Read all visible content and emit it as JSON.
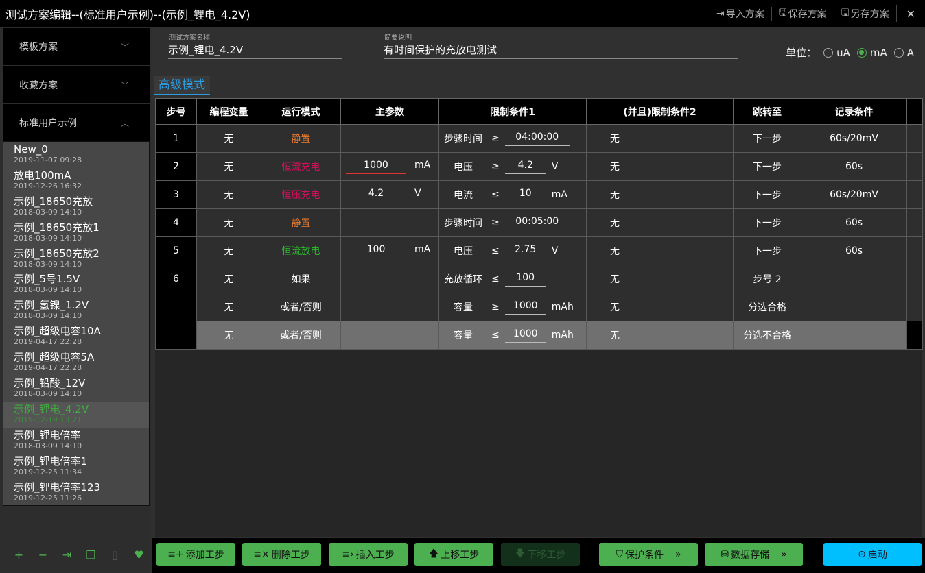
{
  "title": "测试方案编辑--(标准用户示例)--(示例_锂电_4.2V)",
  "titlebar": {
    "import": "导入方案",
    "save": "保存方案",
    "save_as": "另存方案",
    "close": "✕"
  },
  "sidebar": {
    "sections": [
      "模板方案",
      "收藏方案",
      "标准用户示例"
    ],
    "items": [
      {
        "name": "New_0",
        "date": "2019-11-07 09:28"
      },
      {
        "name": "放电100mA",
        "date": "2019-12-26 16:32"
      },
      {
        "name": "示例_18650充放",
        "date": "2018-03-09 14:10"
      },
      {
        "name": "示例_18650充放1",
        "date": "2018-03-09 14:10"
      },
      {
        "name": "示例_18650充放2",
        "date": "2018-03-09 14:10"
      },
      {
        "name": "示例_5号1.5V",
        "date": "2018-03-09 14:10"
      },
      {
        "name": "示例_氢镍_1.2V",
        "date": "2018-03-09 14:10"
      },
      {
        "name": "示例_超级电容10A",
        "date": "2019-04-17 22:28"
      },
      {
        "name": "示例_超级电容5A",
        "date": "2019-04-17 22:28"
      },
      {
        "name": "示例_铅酸_12V",
        "date": "2018-03-09 14:10"
      },
      {
        "name": "示例_锂电_4.2V",
        "date": "2019-12-19 13:21",
        "selected": true
      },
      {
        "name": "示例_锂电倍率",
        "date": "2018-03-09 14:10"
      },
      {
        "name": "示例_锂电倍率1",
        "date": "2019-12-25 11:34"
      },
      {
        "name": "示例_锂电倍率123",
        "date": "2019-12-25 11:26"
      }
    ]
  },
  "form": {
    "name_label": "测试方案名称",
    "name_value": "示例_锂电_4.2V",
    "desc_label": "简要说明",
    "desc_value": "有时间保护的充放电测试",
    "unit_label": "单位：",
    "units": [
      "uA",
      "mA",
      "A"
    ],
    "selected_unit": "mA"
  },
  "tab": "高级模式",
  "table": {
    "headers": [
      "步号",
      "编程变量",
      "运行模式",
      "主参数",
      "限制条件1",
      "(并且)限制条件2",
      "跳转至",
      "记录条件"
    ],
    "rows": [
      {
        "step": "1",
        "var": "无",
        "mode": "静置",
        "mode_color": "#f08030",
        "param": "",
        "param_unit": "",
        "c1_label": "步骤时间",
        "c1_op": "≥",
        "c1_val": "04:00:00",
        "c1_unit": "",
        "c2": "无",
        "jump": "下一步",
        "record": "60s/20mV"
      },
      {
        "step": "2",
        "var": "无",
        "mode": "恒流充电",
        "mode_color": "#d0105a",
        "param": "1000",
        "param_unit": "mA",
        "c1_label": "电压",
        "c1_op": "≥",
        "c1_val": "4.2",
        "c1_unit": "V",
        "c2": "无",
        "jump": "下一步",
        "record": "60s"
      },
      {
        "step": "3",
        "var": "无",
        "mode": "恒压充电",
        "mode_color": "#d0105a",
        "param": "4.2",
        "param_unit": "V",
        "c1_label": "电流",
        "c1_op": "≤",
        "c1_val": "10",
        "c1_unit": "mA",
        "c2": "无",
        "jump": "下一步",
        "record": "60s/20mV"
      },
      {
        "step": "4",
        "var": "无",
        "mode": "静置",
        "mode_color": "#f08030",
        "param": "",
        "param_unit": "",
        "c1_label": "步骤时间",
        "c1_op": "≥",
        "c1_val": "00:05:00",
        "c1_unit": "",
        "c2": "无",
        "jump": "下一步",
        "record": "60s"
      },
      {
        "step": "5",
        "var": "无",
        "mode": "恒流放电",
        "mode_color": "#2bb52b",
        "param": "100",
        "param_unit": "mA",
        "c1_label": "电压",
        "c1_op": "≤",
        "c1_val": "2.75",
        "c1_unit": "V",
        "c2": "无",
        "jump": "下一步",
        "record": "60s"
      },
      {
        "step": "6",
        "var": "无",
        "mode": "如果",
        "mode_color": "#ffffff",
        "param": "",
        "param_unit": "",
        "c1_label": "充放循环",
        "c1_op": "≤",
        "c1_val": "100",
        "c1_unit": "",
        "c2": "无",
        "jump": "步号 2",
        "record": ""
      },
      {
        "step": "",
        "var": "无",
        "mode": "或者/否则",
        "mode_color": "#ffffff",
        "param": "",
        "param_unit": "",
        "c1_label": "容量",
        "c1_op": "≥",
        "c1_val": "1000",
        "c1_unit": "mAh",
        "c2": "无",
        "jump": "分选合格",
        "record": ""
      },
      {
        "step": "",
        "var": "无",
        "mode": "或者/否则",
        "mode_color": "#ffffff",
        "param": "",
        "param_unit": "",
        "c1_label": "容量",
        "c1_op": "≤",
        "c1_val": "1000",
        "c1_unit": "mAh",
        "c2": "无",
        "jump": "分选不合格",
        "record": "",
        "selected": true
      }
    ]
  },
  "toolbar": {
    "add": "添加工步",
    "delete": "删除工步",
    "insert": "插入工步",
    "up": "上移工步",
    "down": "下移工步",
    "protect": "保护条件",
    "storage": "数据存储",
    "start": "启动"
  }
}
